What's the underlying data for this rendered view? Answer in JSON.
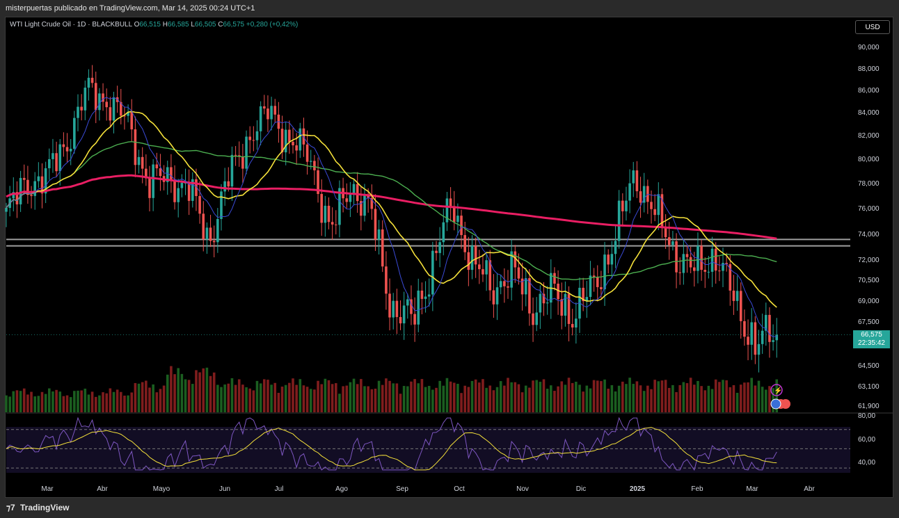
{
  "header": {
    "publish_text": "misterpuertas publicado en TradingView.com, Mar 14, 2025 00:24 UTC+1"
  },
  "legend": {
    "symbol": "WTI Light Crude Oil · 1D · BLACKBULL",
    "o_label": "O",
    "o_value": "66,515",
    "h_label": "H",
    "h_value": "66,585",
    "l_label": "L",
    "l_value": "66,505",
    "c_label": "C",
    "c_value": "66,575",
    "change": "+0,280 (+0,42%)"
  },
  "currency": "USD",
  "price_tag": {
    "price": "66,575",
    "countdown": "22:35:42"
  },
  "footer": {
    "brand": "TradingView"
  },
  "colors": {
    "up": "#26a69a",
    "down": "#ef5350",
    "ma_fast": "#3b4bd8",
    "ma_yellow": "#f5e13a",
    "ma_green": "#4caf50",
    "ma_pink": "#e91e63",
    "rsi": "#7e57c2"
  },
  "chart_data": [
    {
      "type": "candlestick",
      "title": "WTI Light Crude Oil · 1D · BLACKBULL",
      "x_tick_labels": [
        "Mar",
        "Abr",
        "Mayo",
        "Jun",
        "Jul",
        "Ago",
        "Sep",
        "Oct",
        "Nov",
        "Dic",
        "2025",
        "Feb",
        "Mar",
        "Abr"
      ],
      "y_tick_labels": [
        "90,000",
        "88,000",
        "86,000",
        "84,000",
        "82,000",
        "80,000",
        "78,000",
        "76,000",
        "74,000",
        "72,000",
        "70,500",
        "69,000",
        "67,500",
        "64,500",
        "63,100",
        "61,900"
      ],
      "y_ticks": [
        90.0,
        88.0,
        86.0,
        84.0,
        82.0,
        80.0,
        78.0,
        76.0,
        74.0,
        72.0,
        70.5,
        69.0,
        67.5,
        64.5,
        63.1,
        61.9
      ],
      "horizontal_levels": [
        73.55,
        73.05
      ],
      "last_price": 66.575,
      "close_path": [
        {
          "x": "Feb",
          "y": 75.5
        },
        {
          "x": "Mar",
          "y": 78.0
        },
        {
          "x": "Mar",
          "y": 78.5
        },
        {
          "x": "Abr",
          "y": 81.5
        },
        {
          "x": "Abr",
          "y": 86.0
        },
        {
          "x": "Abr",
          "y": 85.0
        },
        {
          "x": "Mayo",
          "y": 83.0
        },
        {
          "x": "Mayo",
          "y": 78.0
        },
        {
          "x": "Mayo",
          "y": 78.5
        },
        {
          "x": "Jun",
          "y": 77.5
        },
        {
          "x": "Jun",
          "y": 73.5
        },
        {
          "x": "Jun",
          "y": 78.5
        },
        {
          "x": "Jul",
          "y": 82.0
        },
        {
          "x": "Jul",
          "y": 84.0
        },
        {
          "x": "Jul",
          "y": 81.5
        },
        {
          "x": "Ago",
          "y": 80.0
        },
        {
          "x": "Ago",
          "y": 74.0
        },
        {
          "x": "Ago",
          "y": 78.0
        },
        {
          "x": "Sep",
          "y": 75.5
        },
        {
          "x": "Sep",
          "y": 68.5
        },
        {
          "x": "Sep",
          "y": 67.5
        },
        {
          "x": "Oct",
          "y": 71.5
        },
        {
          "x": "Oct",
          "y": 76.5
        },
        {
          "x": "Oct",
          "y": 71.5
        },
        {
          "x": "Nov",
          "y": 70.0
        },
        {
          "x": "Nov",
          "y": 71.0
        },
        {
          "x": "Nov",
          "y": 68.5
        },
        {
          "x": "Dic",
          "y": 69.5
        },
        {
          "x": "Dic",
          "y": 68.0
        },
        {
          "x": "Dic",
          "y": 70.0
        },
        {
          "x": "2025",
          "y": 73.5
        },
        {
          "x": "2025",
          "y": 78.8
        },
        {
          "x": "2025",
          "y": 75.5
        },
        {
          "x": "Feb",
          "y": 72.5
        },
        {
          "x": "Feb",
          "y": 71.0
        },
        {
          "x": "Feb",
          "y": 72.5
        },
        {
          "x": "Mar",
          "y": 68.5
        },
        {
          "x": "Mar",
          "y": 66.0
        },
        {
          "x": "Mar",
          "y": 66.575
        }
      ],
      "rsi": {
        "y_tick_labels": [
          "80,00",
          "60,00",
          "40,00"
        ],
        "y_ticks": [
          80,
          60,
          40
        ],
        "bands": [
          70,
          50,
          30
        ]
      }
    }
  ]
}
